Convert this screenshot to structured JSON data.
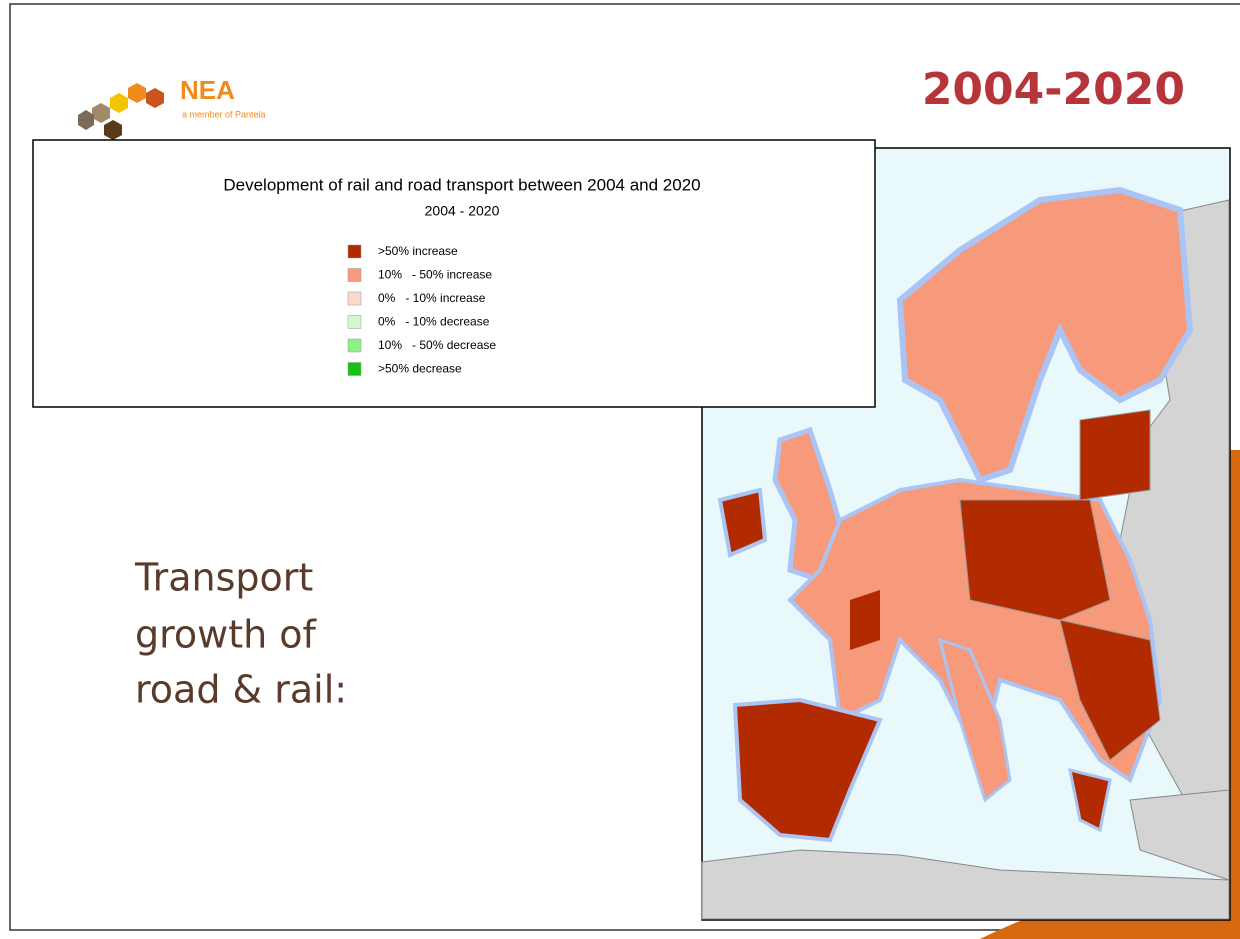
{
  "logo": {
    "name": "NEA",
    "tagline": "a member of Panteia"
  },
  "header": {
    "title": "2004-2020"
  },
  "body": {
    "lines": [
      "Transport",
      "growth of",
      "road & rail:"
    ]
  },
  "legend": {
    "title": "Development of rail and road transport between 2004 and 2020",
    "subtitle": "2004 - 2020",
    "items": [
      {
        "label": ">50% increase",
        "color": "#b22a00"
      },
      {
        "label": "10%   - 50% increase",
        "color": "#f79a7c"
      },
      {
        "label": "0%   - 10% increase",
        "color": "#fbd9cc"
      },
      {
        "label": "0%   - 10% decrease",
        "color": "#d3f7cf"
      },
      {
        "label": "10%   - 50% decrease",
        "color": "#8ef089"
      },
      {
        "label": ">50% decrease",
        "color": "#14c314"
      }
    ]
  }
}
